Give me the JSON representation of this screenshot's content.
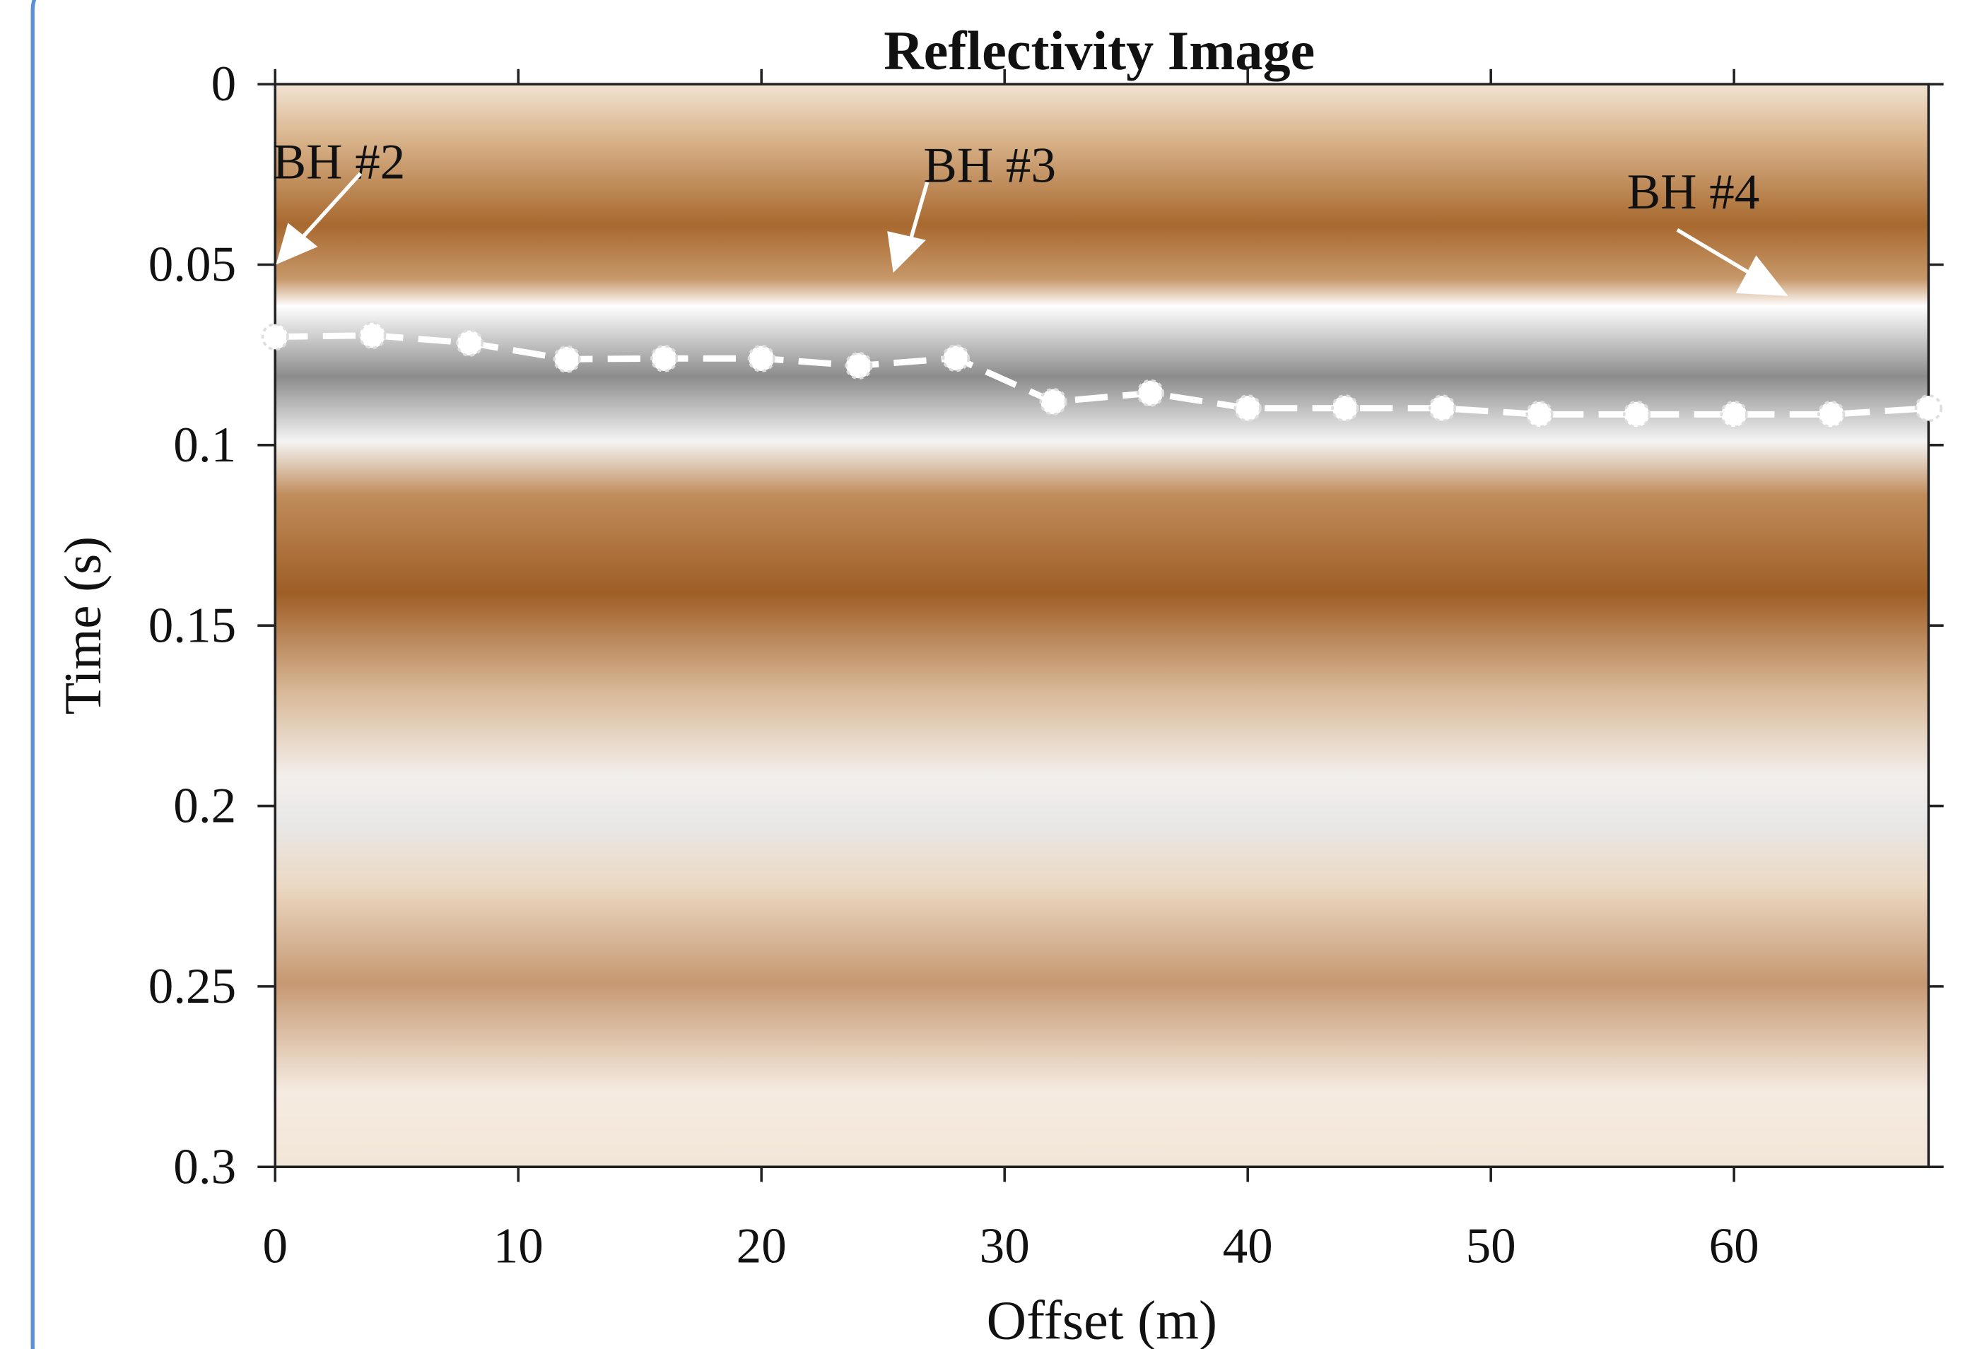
{
  "chart_data": {
    "type": "line",
    "title": "Reflectivity Image",
    "x_label": "Offset (m)",
    "y_label": "Time (s)",
    "x": [
      0,
      4,
      8,
      12,
      16,
      20,
      24,
      28,
      32,
      36,
      40,
      44,
      48,
      52,
      56,
      60,
      64,
      68
    ],
    "series": [
      {
        "color": "#ffffff",
        "values": [
          0.07,
          0.0696,
          0.0717,
          0.0762,
          0.076,
          0.076,
          0.078,
          0.0759,
          0.088,
          0.0856,
          0.0898,
          0.0898,
          0.0898,
          0.0915,
          0.0915,
          0.0915,
          0.0915,
          0.0898
        ]
      }
    ],
    "xlim": [
      0,
      68
    ],
    "ylim": [
      0,
      0.3
    ],
    "y_inverted": true,
    "xticks": [
      0,
      10,
      20,
      30,
      40,
      50,
      60
    ],
    "yticks": [
      0,
      0.05,
      0.1,
      0.15,
      0.2,
      0.25,
      0.3
    ],
    "annotations": [
      "BH #2",
      "BH #3",
      "BH #4"
    ]
  }
}
